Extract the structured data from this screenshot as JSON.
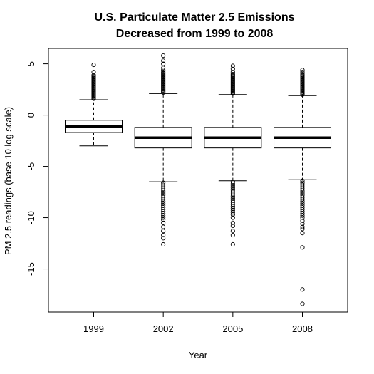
{
  "chart_data": {
    "type": "boxplot",
    "title_line1": "U.S. Particulate Matter 2.5 Emissions",
    "title_line2": "Decreased from 1999 to 2008",
    "xlabel": "Year",
    "ylabel": "PM 2.5 readings (base 10 log scale)",
    "ylim": [
      -19.2,
      6.5
    ],
    "yticks": [
      5,
      0,
      -5,
      -10,
      -15
    ],
    "ytick_labels": [
      "5",
      "0",
      "-5",
      "-10",
      "-15"
    ],
    "grid": false,
    "categories": [
      "1999",
      "2002",
      "2005",
      "2008"
    ],
    "boxes": [
      {
        "category": "1999",
        "whisker_low": -3.0,
        "q1": -1.7,
        "median": -1.1,
        "q3": -0.5,
        "whisker_high": 1.5,
        "outliers_high": [
          1.6,
          1.7,
          1.8,
          1.9,
          2.0,
          2.1,
          2.2,
          2.3,
          2.4,
          2.5,
          2.6,
          2.7,
          2.8,
          2.9,
          3.0,
          3.1,
          3.2,
          3.3,
          3.4,
          3.5,
          3.6,
          3.7,
          3.8,
          3.9,
          4.2,
          4.9
        ],
        "outliers_low": []
      },
      {
        "category": "2002",
        "whisker_low": -6.5,
        "q1": -3.2,
        "median": -2.2,
        "q3": -1.2,
        "whisker_high": 2.1,
        "outliers_high": [
          2.2,
          2.3,
          2.4,
          2.5,
          2.6,
          2.7,
          2.8,
          2.9,
          3.0,
          3.1,
          3.2,
          3.3,
          3.4,
          3.5,
          3.6,
          3.7,
          3.8,
          3.9,
          4.0,
          4.1,
          4.2,
          4.4,
          4.6,
          5.0,
          5.3,
          5.8
        ],
        "outliers_low": [
          -6.6,
          -6.8,
          -7.0,
          -7.2,
          -7.4,
          -7.6,
          -7.8,
          -8.0,
          -8.2,
          -8.4,
          -8.6,
          -8.8,
          -9.0,
          -9.2,
          -9.4,
          -9.6,
          -9.8,
          -10.0,
          -10.2,
          -10.5,
          -10.9,
          -11.3,
          -11.7,
          -12.0,
          -12.6
        ]
      },
      {
        "category": "2005",
        "whisker_low": -6.4,
        "q1": -3.2,
        "median": -2.2,
        "q3": -1.2,
        "whisker_high": 2.0,
        "outliers_high": [
          2.1,
          2.2,
          2.3,
          2.4,
          2.5,
          2.6,
          2.7,
          2.8,
          2.9,
          3.0,
          3.1,
          3.2,
          3.3,
          3.4,
          3.5,
          3.6,
          3.7,
          3.8,
          3.9,
          4.0,
          4.2,
          4.5,
          4.8
        ],
        "outliers_low": [
          -6.5,
          -6.7,
          -6.9,
          -7.1,
          -7.3,
          -7.5,
          -7.7,
          -7.9,
          -8.1,
          -8.3,
          -8.5,
          -8.7,
          -8.9,
          -9.1,
          -9.3,
          -9.5,
          -9.7,
          -10.0,
          -10.5,
          -10.8,
          -11.3,
          -11.7,
          -12.6
        ]
      },
      {
        "category": "2008",
        "whisker_low": -6.3,
        "q1": -3.2,
        "median": -2.2,
        "q3": -1.2,
        "whisker_high": 1.9,
        "outliers_high": [
          2.0,
          2.1,
          2.2,
          2.3,
          2.4,
          2.5,
          2.6,
          2.7,
          2.8,
          2.9,
          3.0,
          3.1,
          3.2,
          3.3,
          3.4,
          3.5,
          3.6,
          3.7,
          3.8,
          3.9,
          4.0,
          4.2,
          4.4
        ],
        "outliers_low": [
          -6.4,
          -6.6,
          -6.8,
          -7.0,
          -7.2,
          -7.4,
          -7.6,
          -7.8,
          -8.0,
          -8.2,
          -8.4,
          -8.6,
          -8.8,
          -9.0,
          -9.2,
          -9.4,
          -9.6,
          -9.8,
          -10.0,
          -10.3,
          -10.6,
          -10.9,
          -11.1,
          -11.5,
          -12.9,
          -17.0,
          -18.4
        ]
      }
    ]
  }
}
